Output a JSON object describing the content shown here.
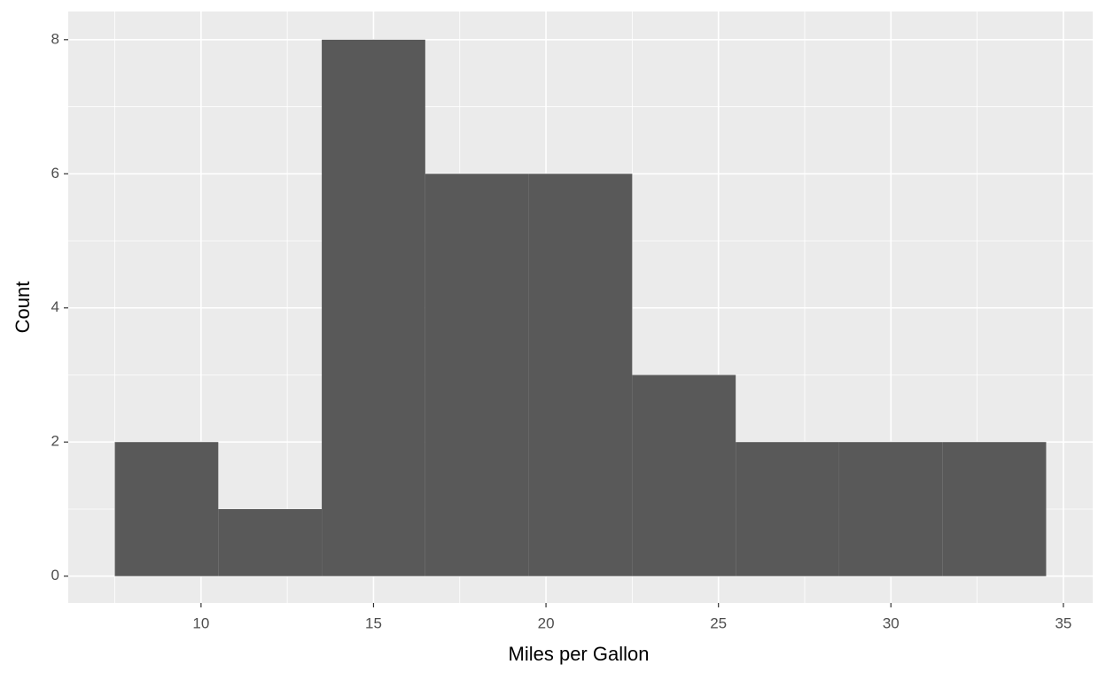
{
  "chart_data": {
    "type": "histogram",
    "x_label": "Miles per Gallon",
    "y_label": "Count",
    "bins": [
      7.5,
      10.5,
      13.5,
      16.5,
      19.5,
      22.5,
      25.5,
      28.5,
      31.5,
      34.5
    ],
    "counts": [
      2,
      1,
      8,
      6,
      6,
      3,
      2,
      2,
      2
    ],
    "color": "#595959",
    "xlim": [
      6.15,
      35.85
    ],
    "xticks": [
      10,
      15,
      20,
      25,
      30,
      35
    ],
    "xminor": [
      7.5,
      12.5,
      17.5,
      22.5,
      27.5,
      32.5
    ],
    "ylim": [
      -0.4,
      8.42
    ],
    "yticks": [
      0,
      2,
      4,
      6,
      8
    ],
    "yminor": [
      1,
      3,
      5,
      7
    ],
    "grid": true
  }
}
